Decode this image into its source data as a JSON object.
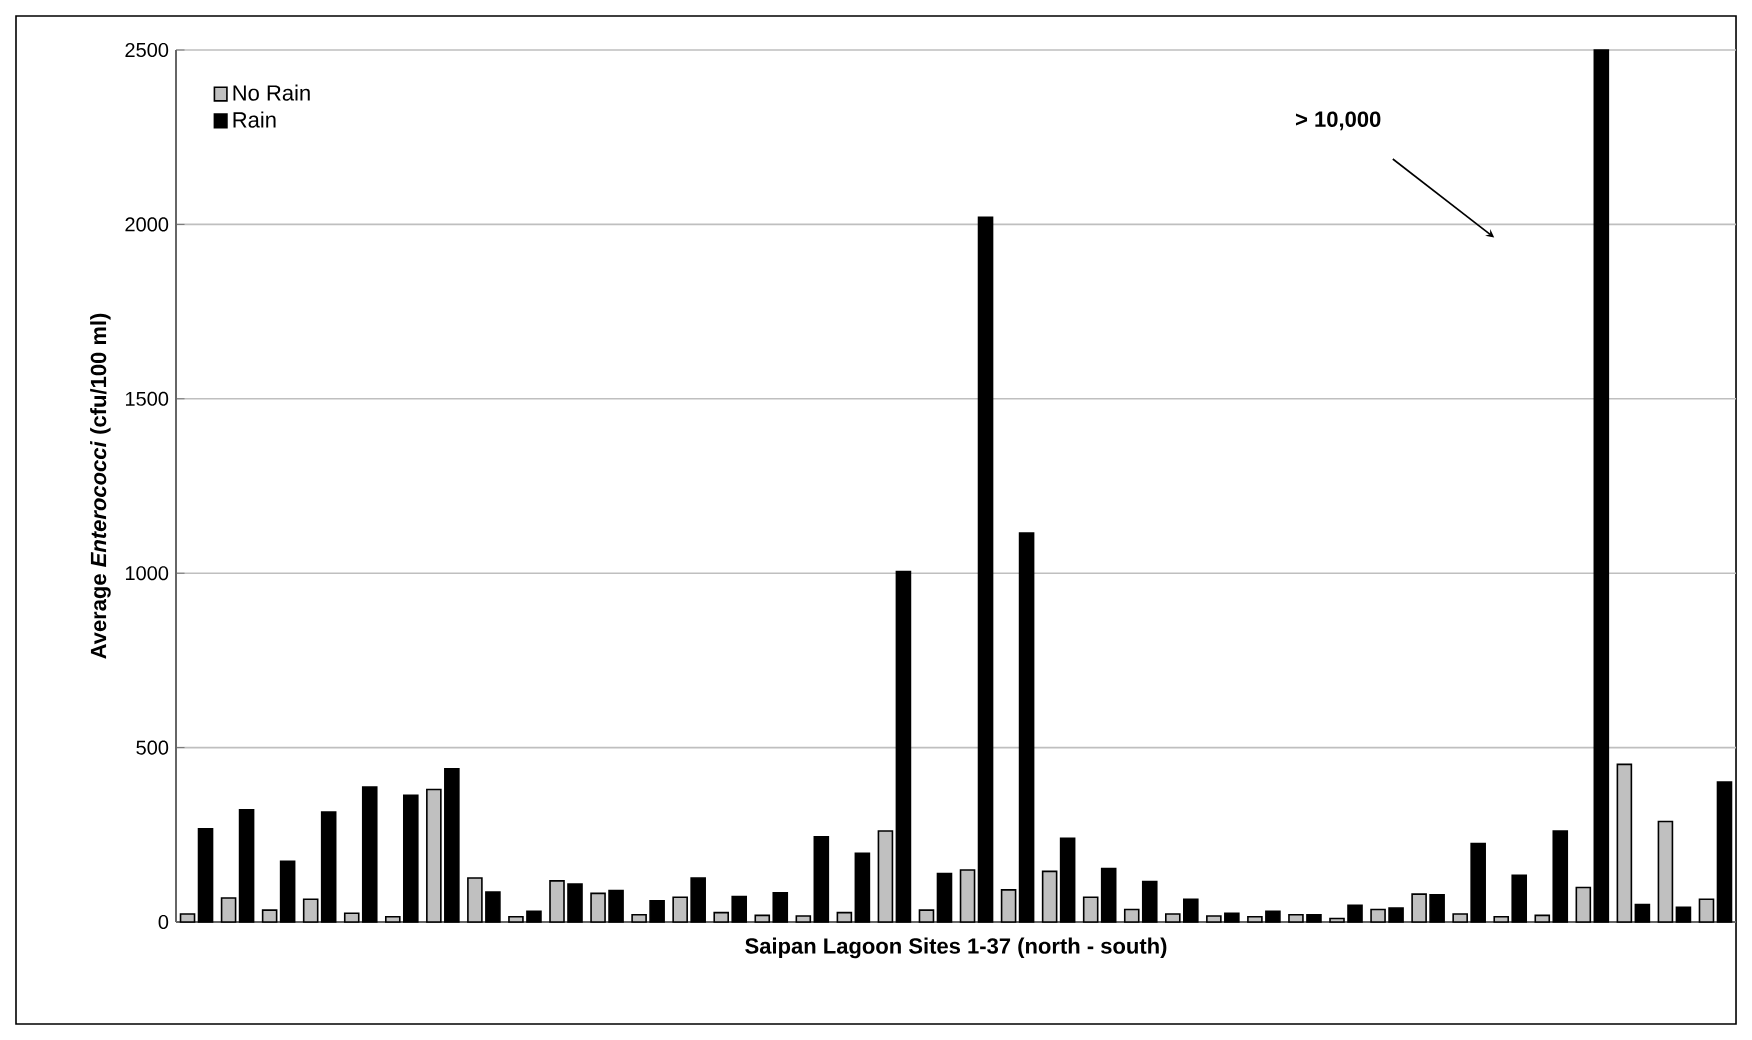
{
  "chart_data": {
    "type": "bar",
    "xlabel": "Saipan Lagoon Sites 1-37 (north - south)",
    "ylabel": "Average *Enterococci* (cfu/100 ml)",
    "categories": [
      null,
      null,
      null,
      null,
      null,
      null,
      null,
      null,
      null,
      null,
      null,
      null,
      null,
      null,
      null,
      null,
      null,
      null,
      null,
      null,
      null,
      null,
      null,
      null,
      null,
      null,
      null,
      null,
      null,
      null,
      null,
      null,
      null,
      null,
      null,
      null,
      null,
      null
    ],
    "series": [
      {
        "name": "No Rain",
        "color": "#c0c0c0",
        "values": [
          23,
          69,
          34,
          65,
          25,
          15,
          380,
          126,
          15,
          118,
          82,
          21,
          71,
          27,
          19,
          17,
          27,
          261,
          34,
          149,
          92,
          145,
          71,
          36,
          23,
          17,
          15,
          21,
          10,
          36,
          80,
          23,
          15,
          19,
          99,
          452,
          288,
          65
        ]
      },
      {
        "name": "Rain",
        "color": "#000000",
        "values": [
          267,
          322,
          174,
          315,
          387,
          363,
          439,
          86,
          31,
          109,
          90,
          61,
          126,
          73,
          84,
          244,
          197,
          1005,
          139,
          2020,
          1115,
          240,
          153,
          116,
          65,
          25,
          31,
          21,
          48,
          40,
          78,
          225,
          134,
          261,
          2500,
          50,
          42,
          401
        ]
      }
    ],
    "ylim": [
      0,
      2500
    ],
    "yticks": [
      0,
      500,
      1000,
      1500,
      2000,
      2500
    ],
    "grid": "y",
    "legend": "top left",
    "annotations": [
      "> 10,000"
    ]
  }
}
